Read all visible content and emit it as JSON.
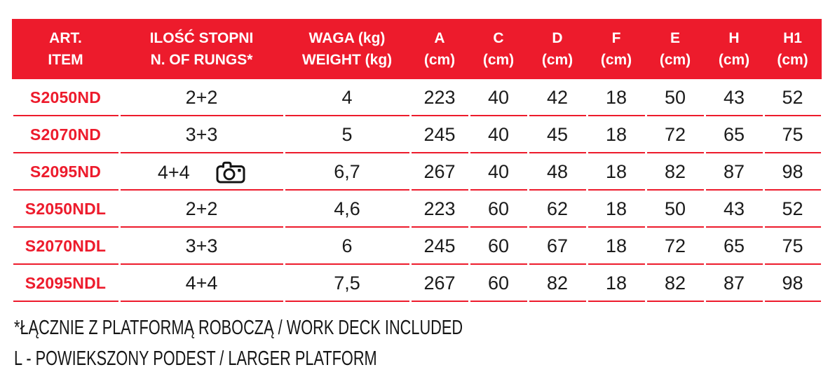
{
  "accent_color": "#ED1B2C",
  "text_color": "#1b1b1b",
  "table": {
    "header": {
      "col_art": {
        "line1": "ART.",
        "line2": "ITEM"
      },
      "col_rungs": {
        "line1": "ILOŚĆ STOPNI",
        "line2": "N. OF RUNGS*"
      },
      "col_weight": {
        "line1": "WAGA (kg)",
        "line2": "WEIGHT (kg)"
      },
      "dims": [
        {
          "letter": "A",
          "unit": "(cm)"
        },
        {
          "letter": "C",
          "unit": "(cm)"
        },
        {
          "letter": "D",
          "unit": "(cm)"
        },
        {
          "letter": "F",
          "unit": "(cm)"
        },
        {
          "letter": "E",
          "unit": "(cm)"
        },
        {
          "letter": "H",
          "unit": "(cm)"
        },
        {
          "letter": "H1",
          "unit": "(cm)"
        }
      ]
    },
    "rows": [
      {
        "item": "S2050ND",
        "rungs": "2+2",
        "camera": false,
        "weight": "4",
        "dims": [
          "223",
          "40",
          "42",
          "18",
          "50",
          "43",
          "52"
        ]
      },
      {
        "item": "S2070ND",
        "rungs": "3+3",
        "camera": false,
        "weight": "5",
        "dims": [
          "245",
          "40",
          "45",
          "18",
          "72",
          "65",
          "75"
        ]
      },
      {
        "item": "S2095ND",
        "rungs": "4+4",
        "camera": true,
        "weight": "6,7",
        "dims": [
          "267",
          "40",
          "48",
          "18",
          "82",
          "87",
          "98"
        ]
      },
      {
        "item": "S2050NDL",
        "rungs": "2+2",
        "camera": false,
        "weight": "4,6",
        "dims": [
          "223",
          "60",
          "62",
          "18",
          "50",
          "43",
          "52"
        ]
      },
      {
        "item": "S2070NDL",
        "rungs": "3+3",
        "camera": false,
        "weight": "6",
        "dims": [
          "245",
          "60",
          "67",
          "18",
          "72",
          "65",
          "75"
        ]
      },
      {
        "item": "S2095NDL",
        "rungs": "4+4",
        "camera": false,
        "weight": "7,5",
        "dims": [
          "267",
          "60",
          "82",
          "18",
          "82",
          "87",
          "98"
        ]
      }
    ]
  },
  "icons": {
    "camera": "camera-icon"
  },
  "footnotes": {
    "line1": "*ŁĄCZNIE Z PLATFORMĄ ROBOCZĄ / WORK DECK INCLUDED",
    "line2": "L - POWIEKSZONY PODEST / LARGER PLATFORM"
  }
}
